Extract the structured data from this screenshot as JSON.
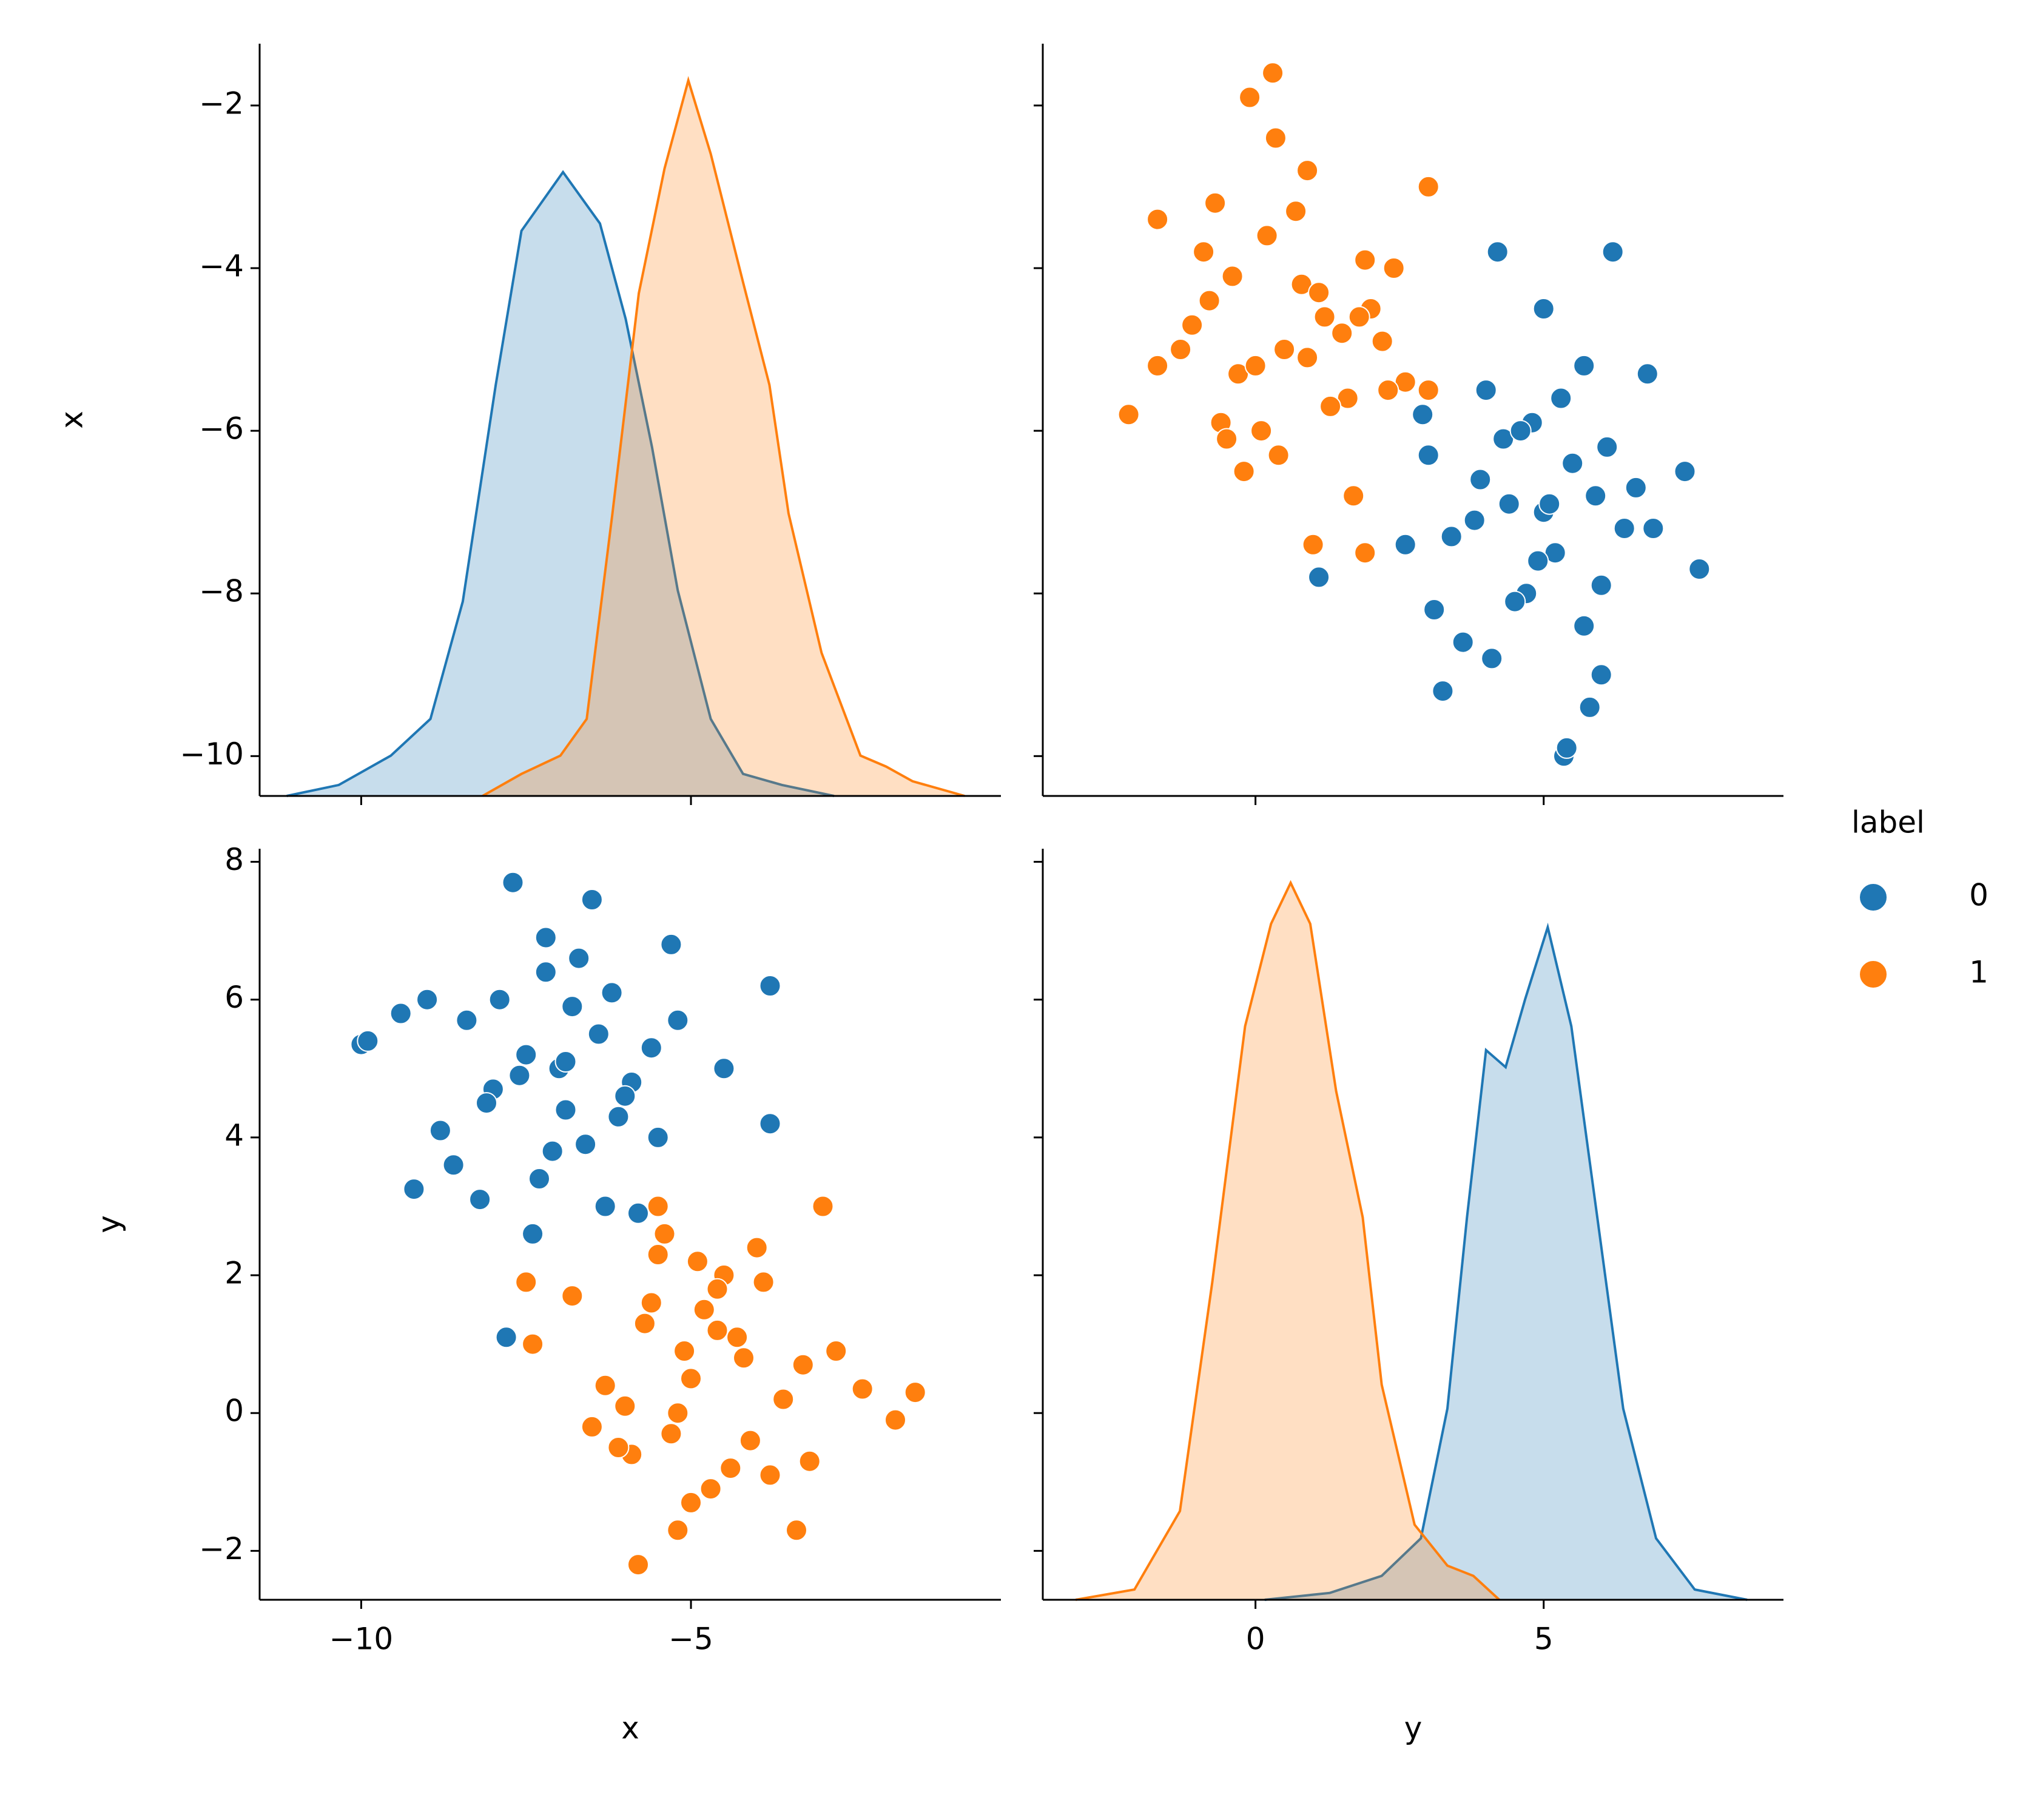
{
  "chart_data": {
    "type": "pairplot",
    "legend_title": "label",
    "variables": [
      {
        "name": "x",
        "xlim": [
          -11.54,
          -0.3
        ],
        "ylim": [
          -10.49,
          -1.24
        ],
        "density_lim": [
          0,
          0.205
        ],
        "xticks": [
          {
            "value": -10,
            "label": "−10"
          },
          {
            "value": -5,
            "label": "−5"
          }
        ],
        "yticks": [
          {
            "value": -10,
            "label": "−10"
          },
          {
            "value": -8,
            "label": "−8"
          },
          {
            "value": -6,
            "label": "−6"
          },
          {
            "value": -4,
            "label": "−4"
          },
          {
            "value": -2,
            "label": "−2"
          }
        ]
      },
      {
        "name": "y",
        "xlim": [
          -3.69,
          9.16
        ],
        "ylim": [
          -2.71,
          8.19
        ],
        "density_lim": [
          0,
          0.22
        ],
        "xticks": [
          0,
          5
        ],
        "yticks": [
          {
            "value": -2,
            "label": "−2"
          },
          0,
          2,
          4,
          6,
          8
        ]
      }
    ],
    "series": [
      {
        "name": "0",
        "color": "#1f77b4",
        "values": [
          [
            -7.7,
            -6.5,
            -10.0,
            -9.9,
            -3.8,
            -3.8,
            -7.8,
            -9.2,
            -4.5,
            -5.3,
            -7.2,
            -6.8,
            -6.2,
            -7.5,
            -8.0,
            -6.9,
            -7.1,
            -6.4,
            -5.9,
            -8.4,
            -8.8,
            -7.3,
            -6.6,
            -5.6,
            -7.9,
            -6.1,
            -7.0,
            -8.2,
            -5.5,
            -6.7,
            -7.6,
            -6.3,
            -9.4,
            -8.6,
            -5.2,
            -7.4,
            -6.0,
            -8.1,
            -6.9,
            -7.2,
            -5.8,
            -9.0
          ],
          [
            7.7,
            7.45,
            5.35,
            5.4,
            6.2,
            4.2,
            1.1,
            3.25,
            5.0,
            6.8,
            6.4,
            5.9,
            6.1,
            5.2,
            4.7,
            4.4,
            3.8,
            5.5,
            4.8,
            5.7,
            4.1,
            3.4,
            3.9,
            5.3,
            6.0,
            4.3,
            5.0,
            3.1,
            4.0,
            6.6,
            4.9,
            3.0,
            5.8,
            3.6,
            5.7,
            2.6,
            4.6,
            4.5,
            5.1,
            6.9,
            2.9,
            6.0
          ]
        ],
        "kde": [
          {
            "grid": [
              -11.13,
              -10.34,
              -9.55,
              -8.95,
              -8.46,
              -7.96,
              -7.57,
              -6.94,
              -6.38,
              -5.99,
              -5.59,
              -5.2,
              -4.7,
              -4.21,
              -3.62,
              -2.83
            ],
            "density": [
              0,
              0.003,
              0.011,
              0.021,
              0.053,
              0.112,
              0.154,
              0.17,
              0.156,
              0.13,
              0.095,
              0.056,
              0.021,
              0.006,
              0.003,
              0
            ]
          },
          {
            "grid": [
              0.16,
              1.29,
              2.19,
              2.87,
              3.33,
              3.67,
              4.0,
              4.34,
              4.68,
              5.07,
              5.48,
              5.93,
              6.38,
              6.95,
              7.62,
              8.53
            ],
            "density": [
              0,
              0.002,
              0.007,
              0.018,
              0.056,
              0.112,
              0.161,
              0.156,
              0.176,
              0.197,
              0.168,
              0.112,
              0.056,
              0.018,
              0.003,
              0
            ]
          }
        ]
      },
      {
        "name": "1",
        "color": "#ff7f0e",
        "values": [
          [
            -5.8,
            -1.6,
            -1.9,
            -2.4,
            -3.0,
            -7.5,
            -7.4,
            -5.5,
            -3.4,
            -5.2,
            -5.0,
            -4.6,
            -5.3,
            -4.9,
            -4.2,
            -5.6,
            -6.0,
            -4.4,
            -3.9,
            -5.1,
            -4.7,
            -6.3,
            -3.6,
            -5.4,
            -4.8,
            -6.5,
            -4.1,
            -5.7,
            -3.3,
            -4.5,
            -5.9,
            -4.3,
            -6.8,
            -3.8,
            -5.0,
            -4.0,
            -6.1,
            -2.8,
            -5.2,
            -4.6,
            -3.2,
            -5.5
          ],
          [
            -2.2,
            0.3,
            -0.1,
            0.35,
            3.0,
            1.9,
            1.0,
            3.0,
            -1.7,
            -1.7,
            0.5,
            1.2,
            -0.3,
            2.2,
            0.8,
            1.6,
            0.1,
            -0.8,
            1.9,
            0.9,
            -1.1,
            0.4,
            0.2,
            2.6,
            1.5,
            -0.2,
            -0.4,
            1.3,
            0.7,
            2.0,
            -0.6,
            1.1,
            1.7,
            -0.9,
            -1.3,
            2.4,
            -0.5,
            0.9,
            0.0,
            1.8,
            -0.7,
            2.3
          ]
        ],
        "kde": [
          {
            "grid": [
              -8.16,
              -7.57,
              -6.98,
              -6.58,
              -6.19,
              -5.79,
              -5.4,
              -5.04,
              -4.7,
              -4.21,
              -3.81,
              -3.52,
              -3.02,
              -2.43,
              -2.04,
              -1.64,
              -0.85
            ],
            "density": [
              0,
              0.006,
              0.011,
              0.021,
              0.077,
              0.137,
              0.171,
              0.195,
              0.175,
              0.14,
              0.112,
              0.077,
              0.039,
              0.011,
              0.008,
              0.004,
              0
            ]
          },
          {
            "grid": [
              -3.12,
              -2.1,
              -1.31,
              -0.75,
              -0.18,
              0.27,
              0.61,
              0.95,
              1.4,
              1.86,
              2.19,
              2.76,
              3.33,
              3.78,
              4.23
            ],
            "density": [
              0,
              0.003,
              0.026,
              0.093,
              0.168,
              0.198,
              0.21,
              0.198,
              0.149,
              0.112,
              0.063,
              0.022,
              0.01,
              0.007,
              0
            ]
          }
        ]
      }
    ]
  }
}
